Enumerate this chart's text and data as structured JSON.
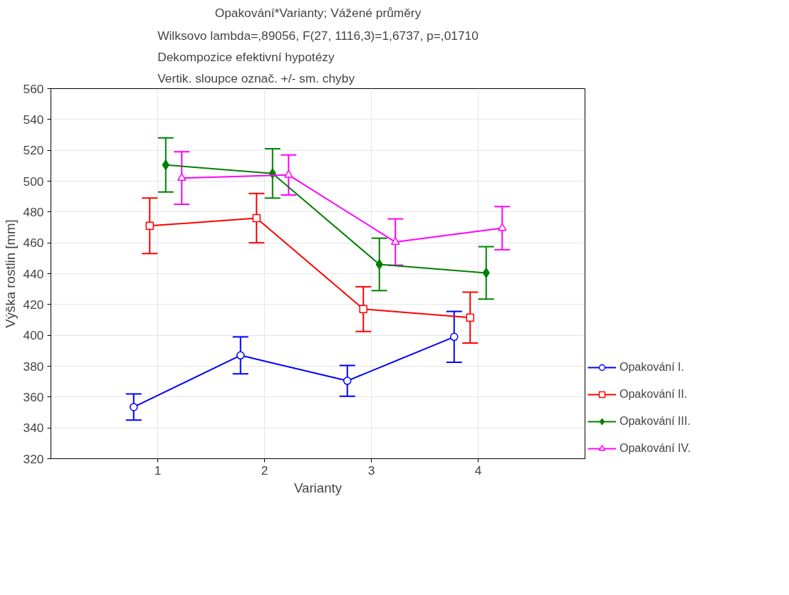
{
  "chart_data": {
    "type": "line",
    "title": "Opakování*Varianty; Vážené průměry",
    "subtitle": "Wilksovo lambda=,89056, F(27, 1116,3)=1,6737, p=,01710\nDekompozice efektivní hypotézy\nVertik. sloupce označ. +/- sm. chyby",
    "xlabel": "Varianty",
    "ylabel": "Výška rostlin [mm]",
    "xlim": [
      0,
      5
    ],
    "xticks": [
      1,
      2,
      3,
      4
    ],
    "ylim": [
      320,
      560
    ],
    "yticks": [
      320,
      340,
      360,
      380,
      400,
      420,
      440,
      460,
      480,
      500,
      520,
      540,
      560
    ],
    "grid": true,
    "legend": "right",
    "series": [
      {
        "name": "Opakování I.",
        "color": "#0000ff",
        "marker": "circle",
        "x": [
          0.775,
          1.775,
          2.775,
          3.775
        ],
        "values": [
          353.5,
          387,
          370.5,
          399
        ],
        "errors": [
          8.5,
          12,
          10,
          16.5
        ]
      },
      {
        "name": "Opakování II.",
        "color": "#ff0000",
        "marker": "square",
        "x": [
          0.925,
          1.925,
          2.925,
          3.925
        ],
        "values": [
          471,
          476,
          417,
          411.5
        ],
        "errors": [
          18,
          16,
          14.5,
          16.5
        ]
      },
      {
        "name": "Opakování III.",
        "color": "#008000",
        "marker": "diamond",
        "x": [
          1.075,
          2.075,
          3.075,
          4.075
        ],
        "values": [
          510.5,
          505,
          446,
          440.5
        ],
        "errors": [
          17.5,
          16,
          17,
          17
        ]
      },
      {
        "name": "Opakování IV.",
        "color": "#ff00ff",
        "marker": "triangle",
        "x": [
          1.225,
          2.225,
          3.225,
          4.225
        ],
        "values": [
          502,
          504,
          460.5,
          469.5
        ],
        "errors": [
          17,
          13,
          15,
          14
        ]
      }
    ]
  }
}
